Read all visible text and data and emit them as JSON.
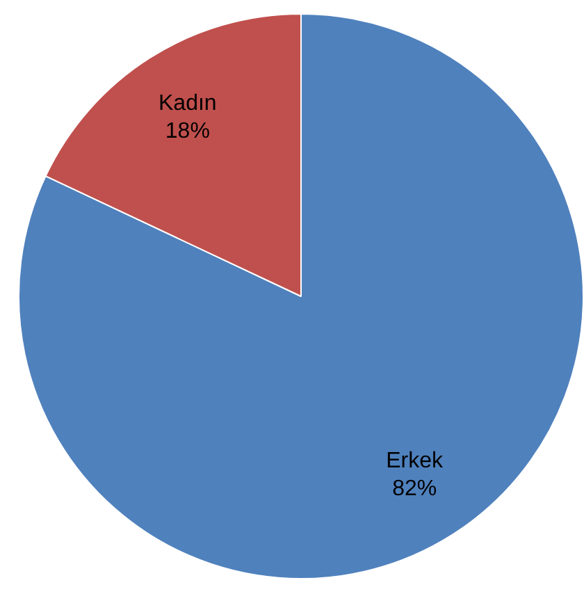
{
  "chart_data": {
    "type": "pie",
    "categories": [
      "Erkek",
      "Kadın"
    ],
    "values": [
      82,
      18
    ],
    "colors": [
      "#4f81bd",
      "#c0504d"
    ],
    "value_labels": [
      "82%",
      "18%"
    ],
    "legend": false
  }
}
